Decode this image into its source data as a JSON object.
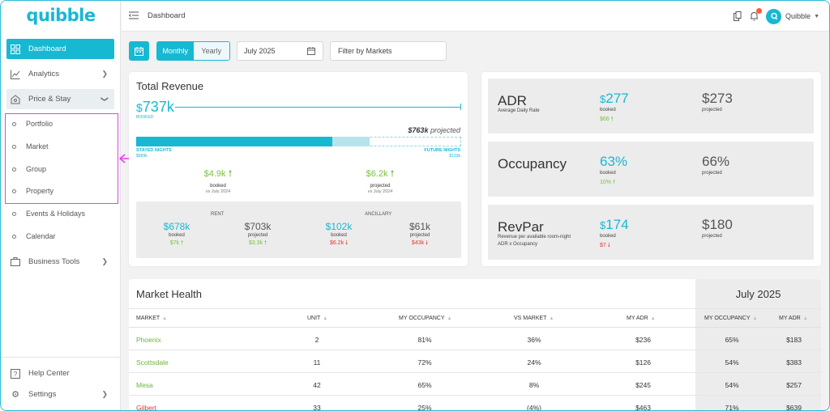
{
  "app": {
    "logo": "quibble"
  },
  "sidebar": {
    "items": [
      {
        "label": "Dashboard",
        "icon": "dashboard-icon"
      },
      {
        "label": "Analytics",
        "icon": "chart-line-icon"
      },
      {
        "label": "Price & Stay",
        "icon": "price-tag-icon"
      }
    ],
    "sub_items": [
      "Portfolio",
      "Market",
      "Group",
      "Property",
      "Events & Holidays",
      "Calendar"
    ],
    "business_tools": "Business Tools",
    "help_center": "Help Center",
    "settings": "Settings"
  },
  "header": {
    "title": "Dashboard",
    "user_name": "Quibble"
  },
  "filters": {
    "monthly": "Monthly",
    "yearly": "Yearly",
    "date": "July 2025",
    "markets_placeholder": "Filter by Markets"
  },
  "total_revenue": {
    "title": "Total Revenue",
    "booked_value": "737k",
    "booked_label": "BOOKED",
    "projected_value": "763k",
    "projected_suffix": "projected",
    "stayed_label": "STAYED NIGHTS",
    "stayed_value": "$589k",
    "future_label": "FUTURE NIGHTS",
    "future_value": "$133k",
    "stayed_fraction": 0.603,
    "future_fraction": 0.115,
    "booked_delta": {
      "value": "$4.9k",
      "label": "booked",
      "sub": "vs July 2024"
    },
    "projected_delta": {
      "value": "$6.2k",
      "label": "projected",
      "sub": "vs July 2024"
    },
    "rent": {
      "heading": "RENT",
      "booked": "678k",
      "booked_label": "booked",
      "booked_delta": "$7k",
      "projected": "$703k",
      "projected_label": "projected",
      "projected_delta": "$3.3k"
    },
    "ancillary": {
      "heading": "ANCILLARY",
      "booked": "102k",
      "booked_label": "booked",
      "booked_delta": "$6.2k",
      "projected": "$61k",
      "projected_label": "projected",
      "projected_delta": "$43k"
    }
  },
  "kpis": [
    {
      "name": "ADR",
      "desc": "Average Daily Rate",
      "desc2": "",
      "value": "277",
      "value_label": "booked",
      "delta": "$66",
      "delta_dir": "up",
      "projected": "$273",
      "projected_label": "projected",
      "dollar": "$"
    },
    {
      "name": "Occupancy",
      "desc": "",
      "desc2": "",
      "value": "63%",
      "value_label": "booked",
      "delta": "10%",
      "delta_dir": "up",
      "projected": "66%",
      "projected_label": "projected",
      "dollar": ""
    },
    {
      "name": "RevPar",
      "desc": "Revenue per available room-night",
      "desc2": "ADR x Occupancy",
      "value": "174",
      "value_label": "booked",
      "delta": "$7",
      "delta_dir": "down",
      "projected": "$180",
      "projected_label": "projected",
      "dollar": "$"
    }
  ],
  "market_health": {
    "title": "Market Health",
    "period": "July 2025",
    "columns": [
      "MARKET",
      "UNIT",
      "MY OCCUPANCY",
      "VS MARKET",
      "MY ADR",
      "MY OCCUPANCY",
      "MY ADR"
    ],
    "rows": [
      {
        "market": "Phoenix",
        "unit": "2",
        "occ": "81%",
        "vs": "36%",
        "adr": "$236",
        "m_occ": "65%",
        "m_adr": "$183",
        "status": "good"
      },
      {
        "market": "Scottsdale",
        "unit": "11",
        "occ": "72%",
        "vs": "24%",
        "adr": "$126",
        "m_occ": "54%",
        "m_adr": "$383",
        "status": "good"
      },
      {
        "market": "Mesa",
        "unit": "42",
        "occ": "65%",
        "vs": "8%",
        "adr": "$245",
        "m_occ": "54%",
        "m_adr": "$257",
        "status": "good"
      },
      {
        "market": "Gilbert",
        "unit": "33",
        "occ": "25%",
        "vs": "(4%)",
        "adr": "$463",
        "m_occ": "71%",
        "m_adr": "$639",
        "status": "bad"
      }
    ]
  },
  "colors": {
    "accent": "#17b8d2",
    "positive": "#7ac143",
    "negative": "#e53935",
    "highlight": "#e63fe8"
  }
}
